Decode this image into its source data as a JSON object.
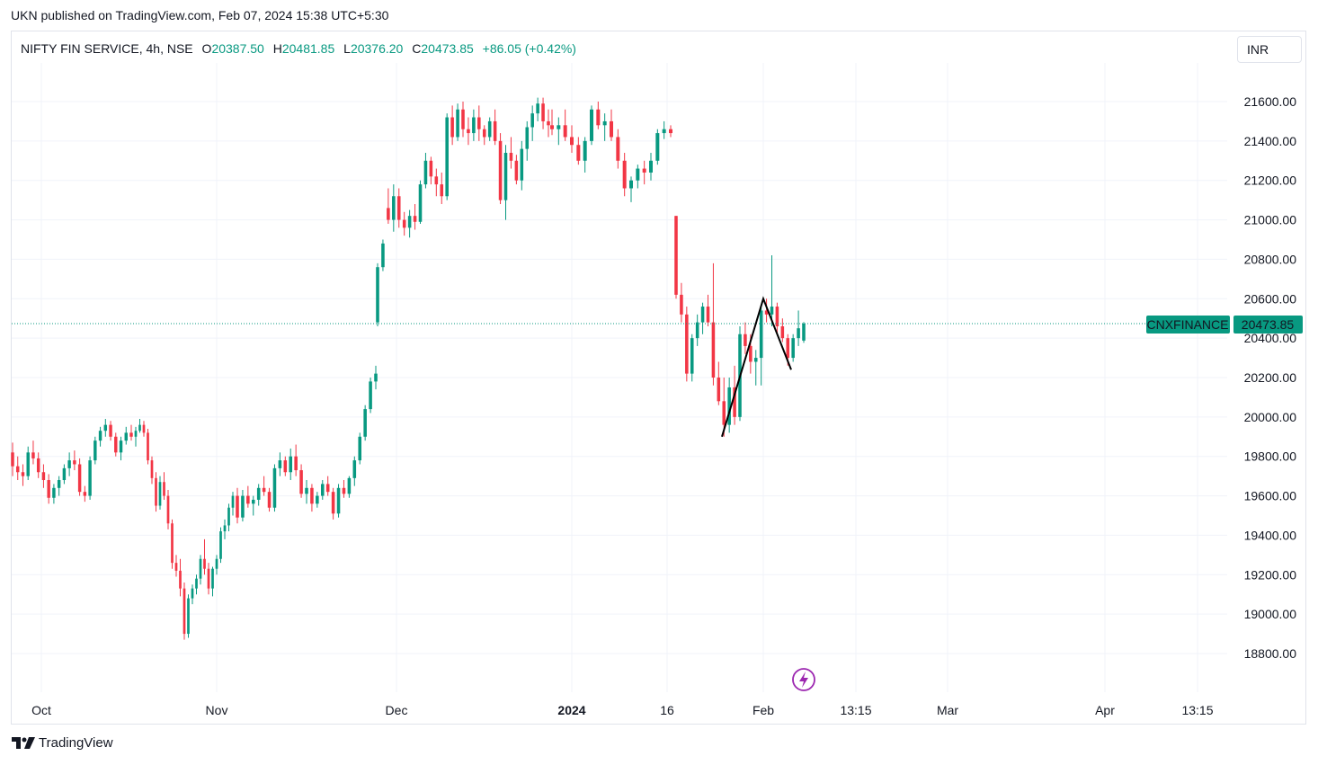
{
  "header": {
    "publish_line": "UKN published on TradingView.com, Feb 07, 2024 15:38 UTC+5:30"
  },
  "legend": {
    "symbol": "NIFTY FIN SERVICE, 4h, NSE",
    "open_label": "O",
    "open": "20387.50",
    "high_label": "H",
    "high": "20481.85",
    "low_label": "L",
    "low": "20376.20",
    "close_label": "C",
    "close": "20473.85",
    "change": "+86.05 (+0.42%)"
  },
  "currency_button": {
    "label": "INR"
  },
  "price_badge": {
    "symbol": "CNXFINANCE",
    "price": "20473.85"
  },
  "footer": {
    "brand": "TradingView"
  },
  "colors": {
    "up": "#089981",
    "down": "#f23645",
    "badge": "#089981",
    "grid": "#f0f3fa",
    "drawing": "#000000",
    "lightning": "#9c27b0"
  },
  "icons": {
    "lightning": "lightning-icon",
    "logo": "tradingview-logo-icon"
  },
  "chart_data": {
    "type": "candlestick",
    "title": "NIFTY FIN SERVICE, 4h, NSE",
    "y_ticks": [
      "21600.00",
      "21400.00",
      "21200.00",
      "21000.00",
      "20800.00",
      "20600.00",
      "20400.00",
      "20200.00",
      "20000.00",
      "19800.00",
      "19600.00",
      "19400.00",
      "19200.00",
      "19000.00",
      "18800.00"
    ],
    "y_tick_values": [
      21600,
      21400,
      21200,
      21000,
      20800,
      20600,
      20400,
      20200,
      20000,
      19800,
      19600,
      19400,
      19200,
      19000,
      18800
    ],
    "ylim": [
      18650,
      21800
    ],
    "x_ticks": [
      {
        "label": "Oct",
        "bold": false
      },
      {
        "label": "Nov",
        "bold": false
      },
      {
        "label": "Dec",
        "bold": false
      },
      {
        "label": "2024",
        "bold": true
      },
      {
        "label": "16",
        "bold": false
      },
      {
        "label": "Feb",
        "bold": false
      },
      {
        "label": "13:15",
        "bold": false
      },
      {
        "label": "Mar",
        "bold": false
      },
      {
        "label": "Apr",
        "bold": false
      },
      {
        "label": "13:15",
        "bold": false
      }
    ],
    "last_price": 20473.85,
    "grid": true,
    "series": [
      {
        "segment": "oct",
        "points": [
          [
            19820,
            19870,
            19700,
            19750
          ],
          [
            19750,
            19800,
            19680,
            19720
          ],
          [
            19720,
            19760,
            19650,
            19700
          ],
          [
            19700,
            19850,
            19680,
            19820
          ],
          [
            19820,
            19880,
            19760,
            19790
          ],
          [
            19790,
            19820,
            19690,
            19720
          ],
          [
            19720,
            19760,
            19640,
            19680
          ],
          [
            19680,
            19710,
            19560,
            19590
          ],
          [
            19590,
            19660,
            19560,
            19640
          ],
          [
            19640,
            19700,
            19600,
            19680
          ],
          [
            19680,
            19760,
            19660,
            19740
          ],
          [
            19740,
            19820,
            19700,
            19780
          ],
          [
            19780,
            19830,
            19730,
            19760
          ],
          [
            19760,
            19790,
            19600,
            19620
          ],
          [
            19620,
            19650,
            19570,
            19600
          ],
          [
            19600,
            19800,
            19580,
            19780
          ],
          [
            19780,
            19900,
            19760,
            19880
          ],
          [
            19880,
            19950,
            19850,
            19930
          ],
          [
            19930,
            19990,
            19900,
            19960
          ],
          [
            19960,
            19980,
            19880,
            19900
          ],
          [
            19900,
            19920,
            19800,
            19820
          ],
          [
            19820,
            19900,
            19780,
            19880
          ],
          [
            19880,
            19950,
            19860,
            19920
          ],
          [
            19920,
            19960,
            19880,
            19900
          ]
        ]
      },
      {
        "segment": "oct-nov",
        "points": [
          [
            19900,
            19950,
            19850,
            19930
          ],
          [
            19930,
            19990,
            19920,
            19960
          ],
          [
            19960,
            19980,
            19900,
            19920
          ],
          [
            19920,
            19940,
            19760,
            19780
          ],
          [
            19780,
            19800,
            19660,
            19690
          ],
          [
            19690,
            19720,
            19520,
            19550
          ],
          [
            19550,
            19700,
            19530,
            19670
          ],
          [
            19670,
            19720,
            19580,
            19600
          ],
          [
            19600,
            19630,
            19430,
            19460
          ],
          [
            19460,
            19480,
            19230,
            19260
          ],
          [
            19260,
            19300,
            19190,
            19220
          ],
          [
            19220,
            19280,
            19090,
            19130
          ],
          [
            19130,
            19160,
            18870,
            18900
          ],
          [
            18900,
            19100,
            18880,
            19080
          ],
          [
            19080,
            19150,
            19050,
            19130
          ],
          [
            19130,
            19200,
            19100,
            19180
          ],
          [
            19180,
            19300,
            19150,
            19280
          ],
          [
            19280,
            19380,
            19200,
            19230
          ],
          [
            19230,
            19260,
            19100,
            19130
          ],
          [
            19130,
            19240,
            19090,
            19230
          ],
          [
            19230,
            19300,
            19200,
            19280
          ],
          [
            19280,
            19440,
            19260,
            19420
          ],
          [
            19420,
            19480,
            19380,
            19450
          ],
          [
            19450,
            19560,
            19420,
            19540
          ],
          [
            19540,
            19620,
            19500,
            19600
          ]
        ]
      },
      {
        "segment": "nov-dec",
        "points": [
          [
            19600,
            19640,
            19460,
            19490
          ],
          [
            19490,
            19630,
            19470,
            19600
          ],
          [
            19600,
            19650,
            19540,
            19560
          ],
          [
            19560,
            19600,
            19500,
            19580
          ],
          [
            19580,
            19660,
            19550,
            19640
          ],
          [
            19640,
            19700,
            19600,
            19620
          ],
          [
            19620,
            19640,
            19520,
            19540
          ],
          [
            19540,
            19760,
            19520,
            19740
          ],
          [
            19740,
            19820,
            19700,
            19780
          ],
          [
            19780,
            19800,
            19700,
            19720
          ],
          [
            19720,
            19840,
            19680,
            19800
          ],
          [
            19800,
            19860,
            19700,
            19730
          ],
          [
            19730,
            19760,
            19590,
            19610
          ],
          [
            19610,
            19680,
            19560,
            19640
          ],
          [
            19640,
            19660,
            19520,
            19560
          ],
          [
            19560,
            19620,
            19540,
            19600
          ],
          [
            19600,
            19680,
            19580,
            19660
          ],
          [
            19660,
            19700,
            19600,
            19620
          ],
          [
            19620,
            19640,
            19480,
            19510
          ],
          [
            19510,
            19660,
            19490,
            19640
          ],
          [
            19640,
            19680,
            19590,
            19610
          ],
          [
            19610,
            19700,
            19590,
            19690
          ],
          [
            19690,
            19800,
            19650,
            19780
          ],
          [
            19780,
            19920,
            19760,
            19900
          ],
          [
            19900,
            20060,
            19880,
            20040
          ],
          [
            20040,
            20200,
            20020,
            20180
          ],
          [
            20180,
            20260,
            20140,
            20220
          ]
        ]
      },
      {
        "segment": "dec",
        "points": [
          [
            20480,
            20780,
            20460,
            20760
          ],
          [
            20760,
            20900,
            20740,
            20880
          ],
          [
            21060,
            21160,
            20980,
            21000
          ],
          [
            21000,
            21180,
            20940,
            21120
          ],
          [
            21120,
            21160,
            20960,
            21000
          ],
          [
            21000,
            21040,
            20920,
            20960
          ],
          [
            20960,
            21050,
            20910,
            21020
          ],
          [
            21020,
            21080,
            20950,
            20990
          ],
          [
            20990,
            21200,
            20980,
            21180
          ],
          [
            21180,
            21340,
            21160,
            21300
          ],
          [
            21300,
            21320,
            21180,
            21220
          ],
          [
            21220,
            21260,
            21120,
            21180
          ],
          [
            21180,
            21240,
            21080,
            21120
          ],
          [
            21120,
            21540,
            21100,
            21520
          ],
          [
            21520,
            21580,
            21380,
            21420
          ],
          [
            21420,
            21590,
            21400,
            21560
          ],
          [
            21560,
            21600,
            21420,
            21460
          ],
          [
            21460,
            21520,
            21380,
            21440
          ],
          [
            21440,
            21560,
            21400,
            21520
          ],
          [
            21520,
            21580,
            21400,
            21460
          ],
          [
            21460,
            21480,
            21380,
            21420
          ],
          [
            21420,
            21520,
            21400,
            21500
          ],
          [
            21500,
            21560,
            21380,
            21400
          ],
          [
            21400,
            21440,
            21080,
            21100
          ],
          [
            21100,
            21380,
            21000,
            21340
          ],
          [
            21340,
            21420,
            21260,
            21300
          ],
          [
            21300,
            21330,
            21180,
            21200
          ],
          [
            21200,
            21400,
            21150,
            21360
          ],
          [
            21360,
            21500,
            21300,
            21470
          ],
          [
            21470,
            21580,
            21400,
            21540
          ],
          [
            21540,
            21620,
            21500,
            21590
          ],
          [
            21590,
            21620,
            21460,
            21500
          ],
          [
            21500,
            21560,
            21420,
            21480
          ]
        ]
      },
      {
        "segment": "jan",
        "points": [
          [
            21480,
            21560,
            21430,
            21460
          ],
          [
            21460,
            21520,
            21380,
            21480
          ],
          [
            21480,
            21560,
            21400,
            21420
          ],
          [
            21420,
            21480,
            21340,
            21380
          ],
          [
            21380,
            21420,
            21280,
            21300
          ],
          [
            21300,
            21420,
            21240,
            21400
          ],
          [
            21400,
            21580,
            21380,
            21560
          ],
          [
            21560,
            21600,
            21460,
            21480
          ],
          [
            21480,
            21540,
            21400,
            21500
          ],
          [
            21500,
            21560,
            21400,
            21420
          ],
          [
            21420,
            21460,
            21260,
            21300
          ],
          [
            21300,
            21340,
            21120,
            21160
          ],
          [
            21160,
            21220,
            21090,
            21200
          ],
          [
            21200,
            21280,
            21160,
            21260
          ],
          [
            21260,
            21300,
            21180,
            21240
          ],
          [
            21240,
            21340,
            21200,
            21300
          ],
          [
            21300,
            21460,
            21280,
            21440
          ],
          [
            21440,
            21500,
            21410,
            21460
          ],
          [
            21460,
            21480,
            21420,
            21440
          ]
        ]
      },
      {
        "segment": "jan-feb",
        "points": [
          [
            21020,
            21020,
            20600,
            20620
          ],
          [
            20620,
            20680,
            20480,
            20520
          ],
          [
            20520,
            20560,
            20180,
            20220
          ],
          [
            20220,
            20420,
            20180,
            20400
          ],
          [
            20400,
            20520,
            20360,
            20480
          ],
          [
            20480,
            20580,
            20420,
            20560
          ],
          [
            20560,
            20620,
            20460,
            20480
          ],
          [
            20480,
            20780,
            20160,
            20200
          ],
          [
            20200,
            20280,
            20060,
            20080
          ],
          [
            20080,
            20200,
            19900,
            19960
          ],
          [
            19960,
            20200,
            19920,
            20150
          ],
          [
            20150,
            20260,
            19960,
            20000
          ],
          [
            20000,
            20460,
            19980,
            20420
          ],
          [
            20420,
            20480,
            20320,
            20360
          ],
          [
            20360,
            20420,
            20220,
            20280
          ],
          [
            20280,
            20340,
            20160,
            20300
          ],
          [
            20300,
            20560,
            20160,
            20540
          ],
          [
            20540,
            20600,
            20480,
            20520
          ],
          [
            20520,
            20820,
            20460,
            20560
          ],
          [
            20560,
            20580,
            20420,
            20460
          ],
          [
            20460,
            20500,
            20380,
            20400
          ],
          [
            20400,
            20420,
            20260,
            20300
          ],
          [
            20300,
            20420,
            20280,
            20400
          ],
          [
            20400,
            20540,
            20360,
            20450
          ],
          [
            20387.5,
            20481.85,
            20376.2,
            20473.85
          ]
        ]
      }
    ],
    "drawing": {
      "type": "polyline",
      "points": [
        [
          "2024-01-25",
          19900
        ],
        [
          "2024-02-01",
          20600
        ],
        [
          "2024-02-06",
          20240
        ]
      ]
    }
  }
}
